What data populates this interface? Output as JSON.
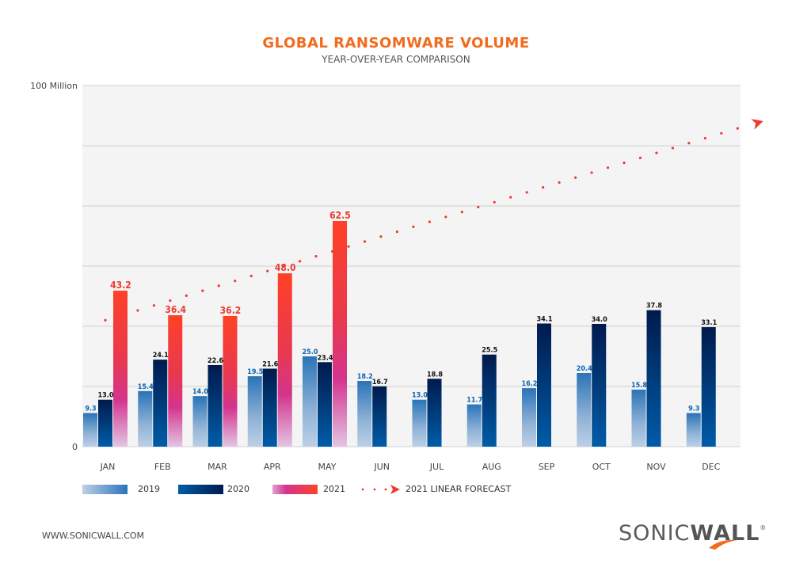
{
  "header": {
    "title": "GLOBAL RANSOMWARE VOLUME",
    "subtitle": "YEAR-OVER-YEAR COMPARISON"
  },
  "footer": {
    "url": "WWW.SONICWALL.COM",
    "logo_light": "SONIC",
    "logo_bold": "WALL",
    "logo_reg": "®"
  },
  "legend": [
    {
      "label": "2019",
      "icon": "gradient-swatch-light-blue"
    },
    {
      "label": "2020",
      "icon": "gradient-swatch-dark-blue"
    },
    {
      "label": "2021",
      "icon": "gradient-swatch-pink-red"
    },
    {
      "label": "2021 LINEAR FORECAST",
      "icon": "dotted-arrow-icon"
    }
  ],
  "colors": {
    "title": "#f26b1d",
    "s2019_top": "#2a74b8",
    "s2019_bottom": "#bcd0e6",
    "s2020_top": "#001a4d",
    "s2020_bottom": "#005ca8",
    "s2021_top": "#ff4127",
    "s2021_mid": "#d4348e",
    "s2021_bottom": "#e2c5e3",
    "forecast": "#ee3b2e",
    "label_2019": "#0a63b0",
    "label_2020": "#111111",
    "label_2021": "#ee3b2e",
    "plot_bg": "#f4f4f4",
    "grid": "#d0d0d0"
  },
  "chart_data": {
    "type": "bar",
    "title": "GLOBAL RANSOMWARE VOLUME",
    "subtitle": "YEAR-OVER-YEAR COMPARISON",
    "xlabel": "",
    "ylabel": "",
    "unit": "Million",
    "ylim": [
      0,
      100
    ],
    "y_tick_labels": [
      {
        "value": 0,
        "label": "0"
      },
      {
        "value": 100,
        "label": "100 Million"
      }
    ],
    "gridlines": [
      0,
      16.67,
      33.33,
      50,
      66.67,
      83.33,
      100
    ],
    "grid": true,
    "legend_position": "bottom",
    "categories": [
      "JAN",
      "FEB",
      "MAR",
      "APR",
      "MAY",
      "JUN",
      "JUL",
      "AUG",
      "SEP",
      "OCT",
      "NOV",
      "DEC"
    ],
    "series": [
      {
        "name": "2019",
        "values": [
          9.3,
          15.4,
          14.0,
          19.5,
          25.0,
          18.2,
          13.0,
          11.7,
          16.2,
          20.4,
          15.8,
          9.3
        ]
      },
      {
        "name": "2020",
        "values": [
          13.0,
          24.1,
          22.6,
          21.6,
          23.4,
          16.7,
          18.8,
          25.5,
          34.1,
          34.0,
          37.8,
          33.1
        ]
      },
      {
        "name": "2021",
        "values": [
          43.2,
          36.4,
          36.2,
          48.0,
          62.5,
          null,
          null,
          null,
          null,
          null,
          null,
          null
        ]
      }
    ],
    "forecast": {
      "name": "2021 LINEAR FORECAST",
      "style": "dotted-with-arrow",
      "start": {
        "month": "JAN",
        "value": 35.0
      },
      "end": {
        "month": "DEC",
        "value": 89.5
      }
    }
  }
}
